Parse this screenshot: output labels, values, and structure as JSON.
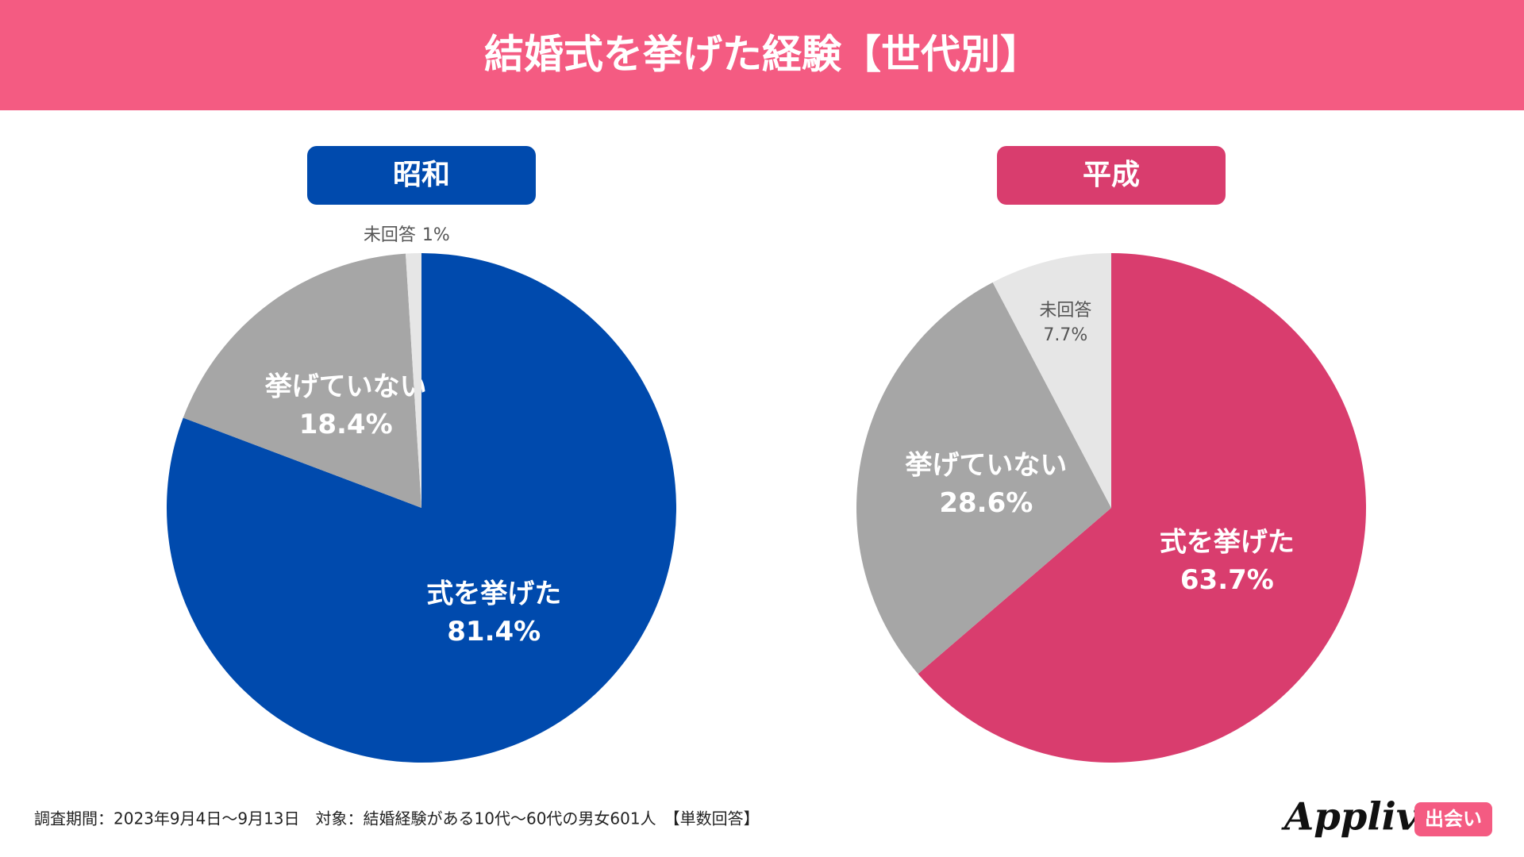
{
  "title": "結婚式を挙げた経験【世代別】",
  "chart_data": [
    {
      "type": "pie",
      "title": "昭和",
      "title_color": "#004aad",
      "categories": [
        "式を挙げた",
        "挙げていない",
        "未回答"
      ],
      "values": [
        81.4,
        18.4,
        1
      ],
      "value_labels": [
        "81.4%",
        "18.4%",
        "1%"
      ],
      "colors": [
        "#004aad",
        "#a6a6a6",
        "#e6e6e6"
      ]
    },
    {
      "type": "pie",
      "title": "平成",
      "title_color": "#d93d6e",
      "categories": [
        "式を挙げた",
        "挙げていない",
        "未回答"
      ],
      "values": [
        63.7,
        28.6,
        7.7
      ],
      "value_labels": [
        "63.7%",
        "28.6%",
        "7.7%"
      ],
      "colors": [
        "#d93d6e",
        "#a6a6a6",
        "#e6e6e6"
      ]
    }
  ],
  "footer": {
    "note": "調査期間：2023年9月4日～9月13日　対象：結婚経験がある10代～60代の男女601人　【単数回答】",
    "brand": "Appliv",
    "brand_tag": "出会い"
  }
}
